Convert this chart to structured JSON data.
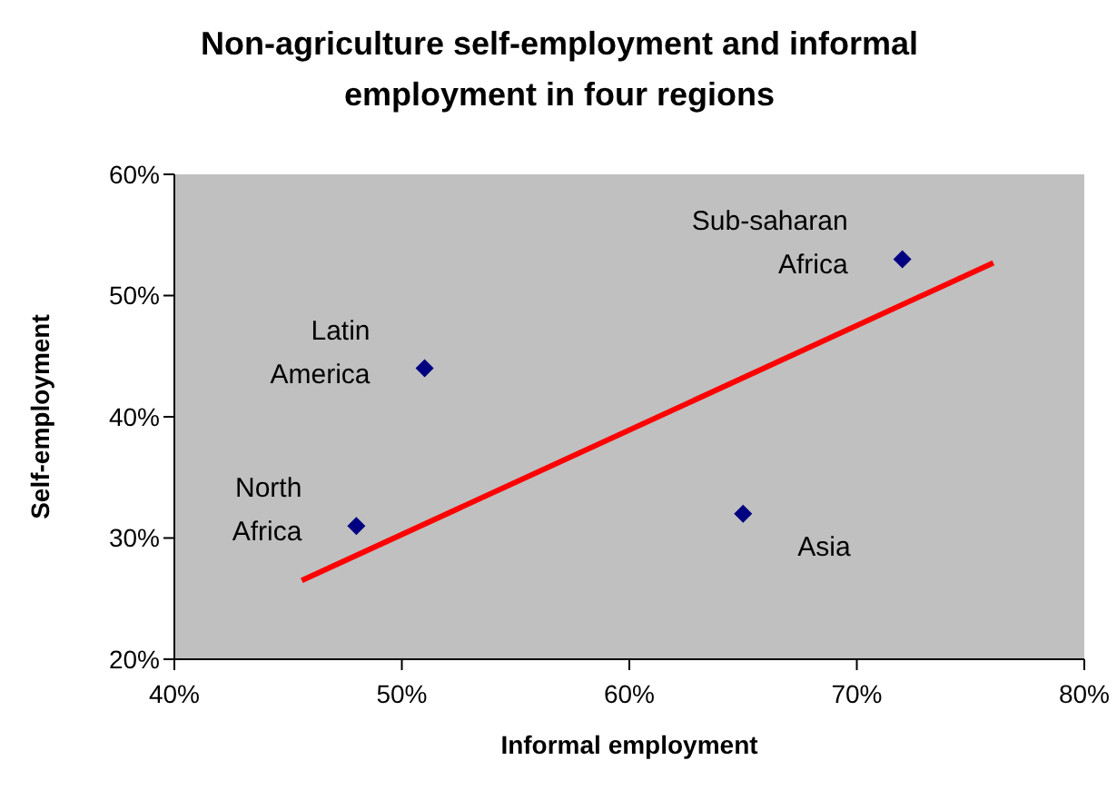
{
  "chart_data": {
    "type": "scatter",
    "title": "Non-agriculture self-employment and informal employment in four regions",
    "xlabel": "Informal employment",
    "ylabel": "Self-employment",
    "series": [
      {
        "x": [
          48,
          51,
          65,
          72
        ],
        "values": [
          31,
          44,
          32,
          53
        ],
        "color": "#000080"
      },
      {
        "type": "line",
        "x": [
          45.6,
          76
        ],
        "values": [
          26.5,
          52.7
        ],
        "color": "#ff0000",
        "marker": "none"
      }
    ],
    "marker": "diamond",
    "xlim": [
      40,
      80
    ],
    "xticks": [
      {
        "value": 40,
        "label": "40%"
      },
      {
        "value": 50,
        "label": "50%"
      },
      {
        "value": 60,
        "label": "60%"
      },
      {
        "value": 70,
        "label": "70%"
      },
      {
        "value": 80,
        "label": "80%"
      }
    ],
    "ylim": [
      20,
      60
    ],
    "yticks": [
      {
        "value": 20,
        "label": "20%"
      },
      {
        "value": 30,
        "label": "30%"
      },
      {
        "value": 40,
        "label": "40%"
      },
      {
        "value": 50,
        "label": "50%"
      },
      {
        "value": 60,
        "label": "60%"
      }
    ],
    "annotations": [
      {
        "text": "North Africa",
        "x": 48,
        "y": 31
      },
      {
        "text": "Latin America",
        "x": 51,
        "y": 44
      },
      {
        "text": "Asia",
        "x": 65,
        "y": 32
      },
      {
        "text": "Sub-saharan Africa",
        "x": 72,
        "y": 53
      }
    ]
  }
}
